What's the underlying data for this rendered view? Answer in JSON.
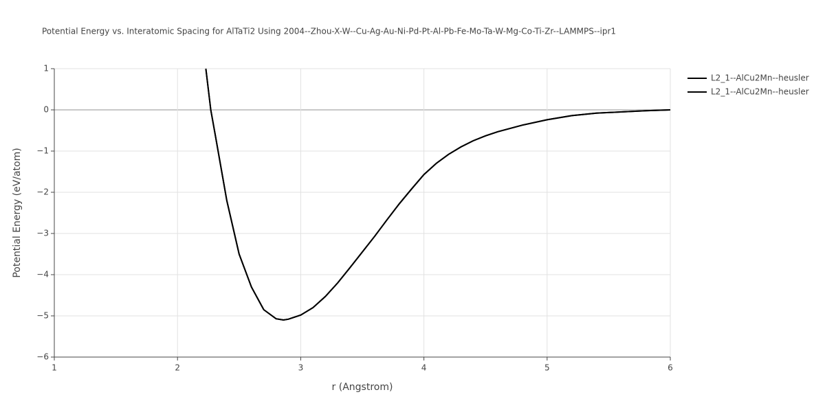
{
  "chart_data": {
    "type": "line",
    "title": "Potential Energy vs. Interatomic Spacing for AlTaTi2 Using 2004--Zhou-X-W--Cu-Ag-Au-Ni-Pd-Pt-Al-Pb-Fe-Mo-Ta-W-Mg-Co-Ti-Zr--LAMMPS--ipr1",
    "x_label": "r (Angstrom)",
    "y_label": "Potential Energy (eV/atom)",
    "x": [
      2.23,
      2.27,
      2.31,
      2.4,
      2.5,
      2.6,
      2.7,
      2.8,
      2.86,
      2.9,
      3.0,
      3.1,
      3.2,
      3.3,
      3.4,
      3.5,
      3.6,
      3.7,
      3.8,
      3.9,
      4.0,
      4.1,
      4.2,
      4.3,
      4.4,
      4.5,
      4.6,
      4.8,
      5.0,
      5.2,
      5.4,
      5.6,
      5.8,
      6.0
    ],
    "series": [
      {
        "name": "L2_1--AlCu2Mn--heusler",
        "color": "#000000",
        "values": [
          1,
          0,
          -0.67,
          -2.2,
          -3.5,
          -4.3,
          -4.85,
          -5.07,
          -5.1,
          -5.08,
          -4.98,
          -4.8,
          -4.53,
          -4.2,
          -3.83,
          -3.45,
          -3.07,
          -2.67,
          -2.28,
          -1.92,
          -1.57,
          -1.3,
          -1.08,
          -0.9,
          -0.75,
          -0.63,
          -0.53,
          -0.37,
          -0.24,
          -0.14,
          -0.08,
          -0.05,
          -0.02,
          0
        ]
      },
      {
        "name": "L2_1--AlCu2Mn--heusler",
        "color": "#000000",
        "values": [
          1,
          0,
          -0.67,
          -2.2,
          -3.5,
          -4.3,
          -4.85,
          -5.07,
          -5.1,
          -5.08,
          -4.98,
          -4.8,
          -4.53,
          -4.2,
          -3.83,
          -3.45,
          -3.07,
          -2.67,
          -2.28,
          -1.92,
          -1.57,
          -1.3,
          -1.08,
          -0.9,
          -0.75,
          -0.63,
          -0.53,
          -0.37,
          -0.24,
          -0.14,
          -0.08,
          -0.05,
          -0.02,
          0
        ]
      }
    ],
    "xlim": [
      1,
      6
    ],
    "xticks": [
      1,
      2,
      3,
      4,
      5,
      6
    ],
    "ylim": [
      -6,
      1
    ],
    "yticks": [
      {
        "value": -6,
        "label": "−6"
      },
      {
        "value": -5,
        "label": "−5"
      },
      {
        "value": -4,
        "label": "−4"
      },
      {
        "value": -3,
        "label": "−3"
      },
      {
        "value": -2,
        "label": "−2"
      },
      {
        "value": -1,
        "label": "−1"
      },
      0,
      1
    ],
    "grid": true
  }
}
